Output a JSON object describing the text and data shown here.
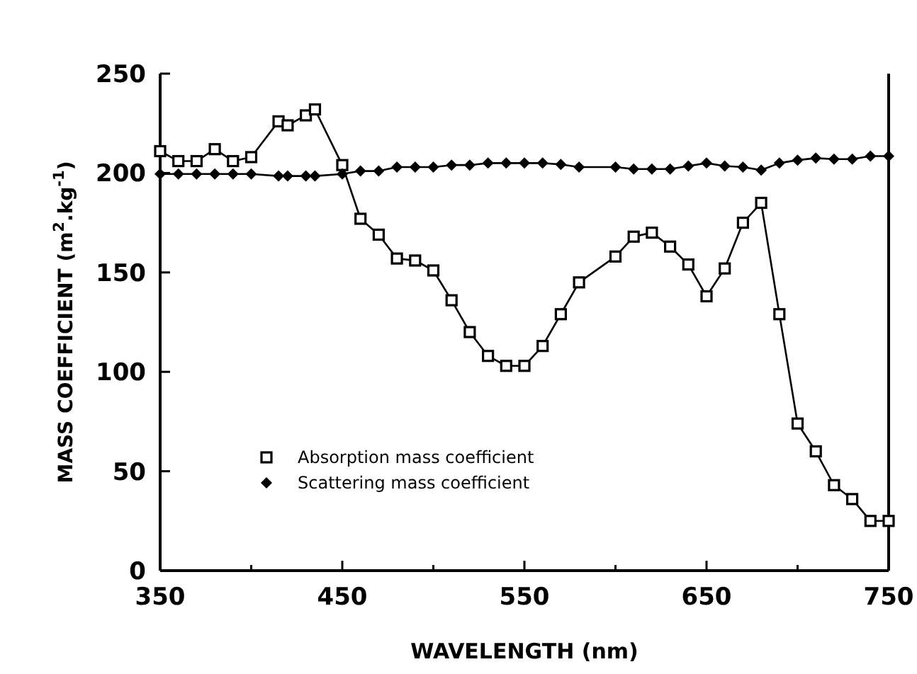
{
  "chart_data": {
    "type": "line",
    "xlabel": "WAVELENGTH (nm)",
    "ylabel": "MASS COEFFICIENT (m$^{2}$.kg$^{-1}$)",
    "xlim": [
      350,
      750
    ],
    "xticks": [
      350,
      {
        "value": 400,
        "label": null
      },
      450,
      {
        "value": 500,
        "label": null
      },
      550,
      {
        "value": 600,
        "label": null
      },
      650,
      {
        "value": 700,
        "label": null
      },
      750
    ],
    "ylim": [
      0,
      250
    ],
    "yticks": [
      0,
      50,
      100,
      150,
      200,
      250
    ],
    "grid": false,
    "legend": "bottom left",
    "series": [
      {
        "name": "Absorption mass coefficient",
        "color": "#000000",
        "marker": "square",
        "x": [
          350,
          360,
          370,
          380,
          390,
          400,
          415,
          420,
          430,
          435,
          450,
          460,
          470,
          480,
          490,
          500,
          510,
          520,
          530,
          540,
          550,
          560,
          570,
          580,
          600,
          610,
          620,
          630,
          640,
          650,
          660,
          670,
          680,
          690,
          700,
          710,
          720,
          730,
          740,
          750
        ],
        "values": [
          211,
          206,
          206,
          212,
          206,
          208,
          226,
          224,
          229,
          232,
          204,
          177,
          169,
          157,
          156,
          151,
          136,
          120,
          108,
          103,
          103,
          113,
          129,
          145,
          158,
          168,
          170,
          163,
          154,
          138,
          152,
          175,
          185,
          129,
          74,
          60,
          43,
          36,
          25,
          25
        ]
      },
      {
        "name": "Scattering mass coefficient",
        "color": "#000000",
        "marker": "diamond",
        "x": [
          350,
          360,
          370,
          380,
          390,
          400,
          415,
          420,
          430,
          435,
          450,
          460,
          470,
          480,
          490,
          500,
          510,
          520,
          530,
          540,
          550,
          560,
          570,
          580,
          600,
          610,
          620,
          630,
          640,
          650,
          660,
          670,
          680,
          690,
          700,
          710,
          720,
          730,
          740,
          750
        ],
        "values": [
          199.5,
          199.5,
          199.5,
          199.5,
          199.5,
          199.5,
          198.5,
          198.5,
          198.5,
          198.5,
          199.5,
          201,
          201,
          203,
          203,
          203,
          204,
          204,
          205,
          205,
          205,
          205,
          204.3,
          203,
          203,
          202,
          202,
          202,
          203.5,
          205,
          203.5,
          203,
          201.5,
          205,
          206.5,
          207.5,
          207,
          207,
          208.5,
          208.5
        ]
      }
    ]
  }
}
